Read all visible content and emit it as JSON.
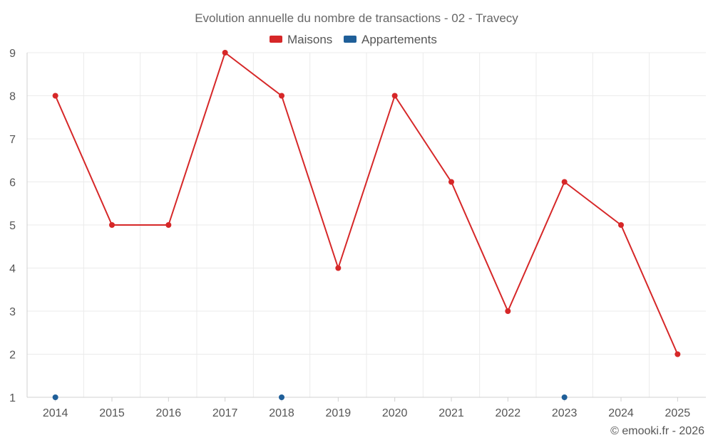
{
  "chart_data": {
    "type": "line",
    "title": "Evolution annuelle du nombre de transactions - 02 - Travecy",
    "categories": [
      "2014",
      "2015",
      "2016",
      "2017",
      "2018",
      "2019",
      "2020",
      "2021",
      "2022",
      "2023",
      "2024",
      "2025"
    ],
    "ylim": [
      1,
      9
    ],
    "yticks": [
      1,
      2,
      3,
      4,
      5,
      6,
      7,
      8,
      9
    ],
    "grid": true,
    "legend_position": "top-center",
    "series": [
      {
        "name": "Maisons",
        "color": "#d62728",
        "values": [
          8,
          5,
          5,
          9,
          8,
          4,
          8,
          6,
          3,
          6,
          5,
          2
        ],
        "connected": true
      },
      {
        "name": "Appartements",
        "color": "#1f5f99",
        "values": [
          1,
          null,
          null,
          null,
          1,
          null,
          null,
          null,
          null,
          1,
          null,
          null
        ],
        "connected": false
      }
    ]
  },
  "credit": "© emooki.fr - 2026"
}
